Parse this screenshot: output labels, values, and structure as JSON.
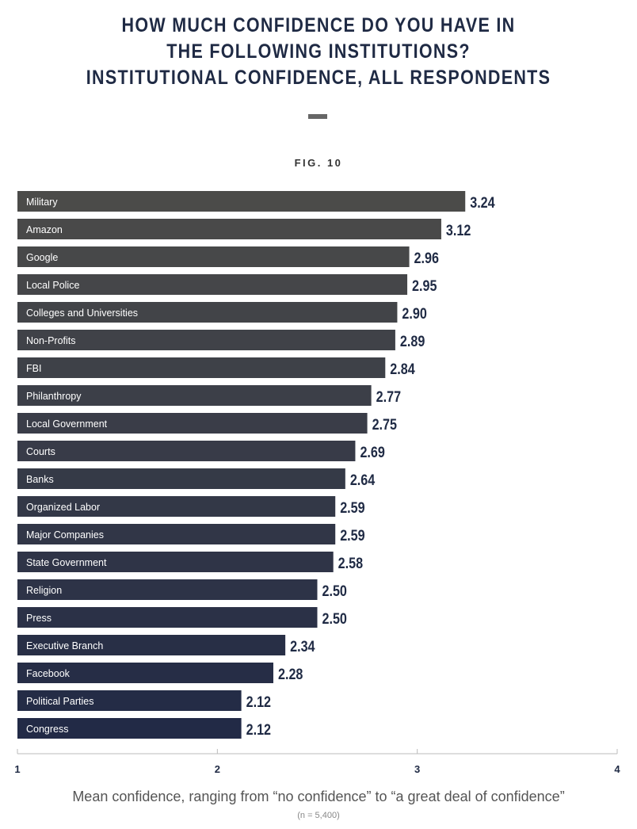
{
  "title_lines": [
    "HOW MUCH CONFIDENCE DO YOU HAVE IN",
    "THE FOLLOWING INSTITUTIONS?",
    "INSTITUTIONAL CONFIDENCE, ALL RESPONDENTS"
  ],
  "figure_label": "FIG. 10",
  "chart_data": {
    "type": "bar",
    "orientation": "horizontal",
    "title": "How much confidence do you have in the following institutions? Institutional confidence, all respondents",
    "categories": [
      "Military",
      "Amazon",
      "Google",
      "Local Police",
      "Colleges and Universities",
      "Non-Profits",
      "FBI",
      "Philanthropy",
      "Local Government",
      "Courts",
      "Banks",
      "Organized Labor",
      "Major Companies",
      "State Government",
      "Religion",
      "Press",
      "Executive Branch",
      "Facebook",
      "Political Parties",
      "Congress"
    ],
    "values": [
      3.24,
      3.12,
      2.96,
      2.95,
      2.9,
      2.89,
      2.84,
      2.77,
      2.75,
      2.69,
      2.64,
      2.59,
      2.59,
      2.58,
      2.5,
      2.5,
      2.34,
      2.28,
      2.12,
      2.12
    ],
    "value_labels": [
      "3.24",
      "3.12",
      "2.96",
      "2.95",
      "2.90",
      "2.89",
      "2.84",
      "2.77",
      "2.75",
      "2.69",
      "2.64",
      "2.59",
      "2.59",
      "2.58",
      "2.50",
      "2.50",
      "2.34",
      "2.28",
      "2.12",
      "2.12"
    ],
    "xlim": [
      1,
      4
    ],
    "xticks": [
      "1",
      "2",
      "3",
      "4"
    ],
    "xlabel": "Mean confidence,  ranging from “no confidence” to “a great deal of confidence”",
    "note": "(n = 5,400)",
    "grid": false,
    "colors": {
      "top": "#4b4b49",
      "bottom": "#222a46",
      "title": "#1f2a44",
      "value_label": "#1f2a44"
    }
  }
}
